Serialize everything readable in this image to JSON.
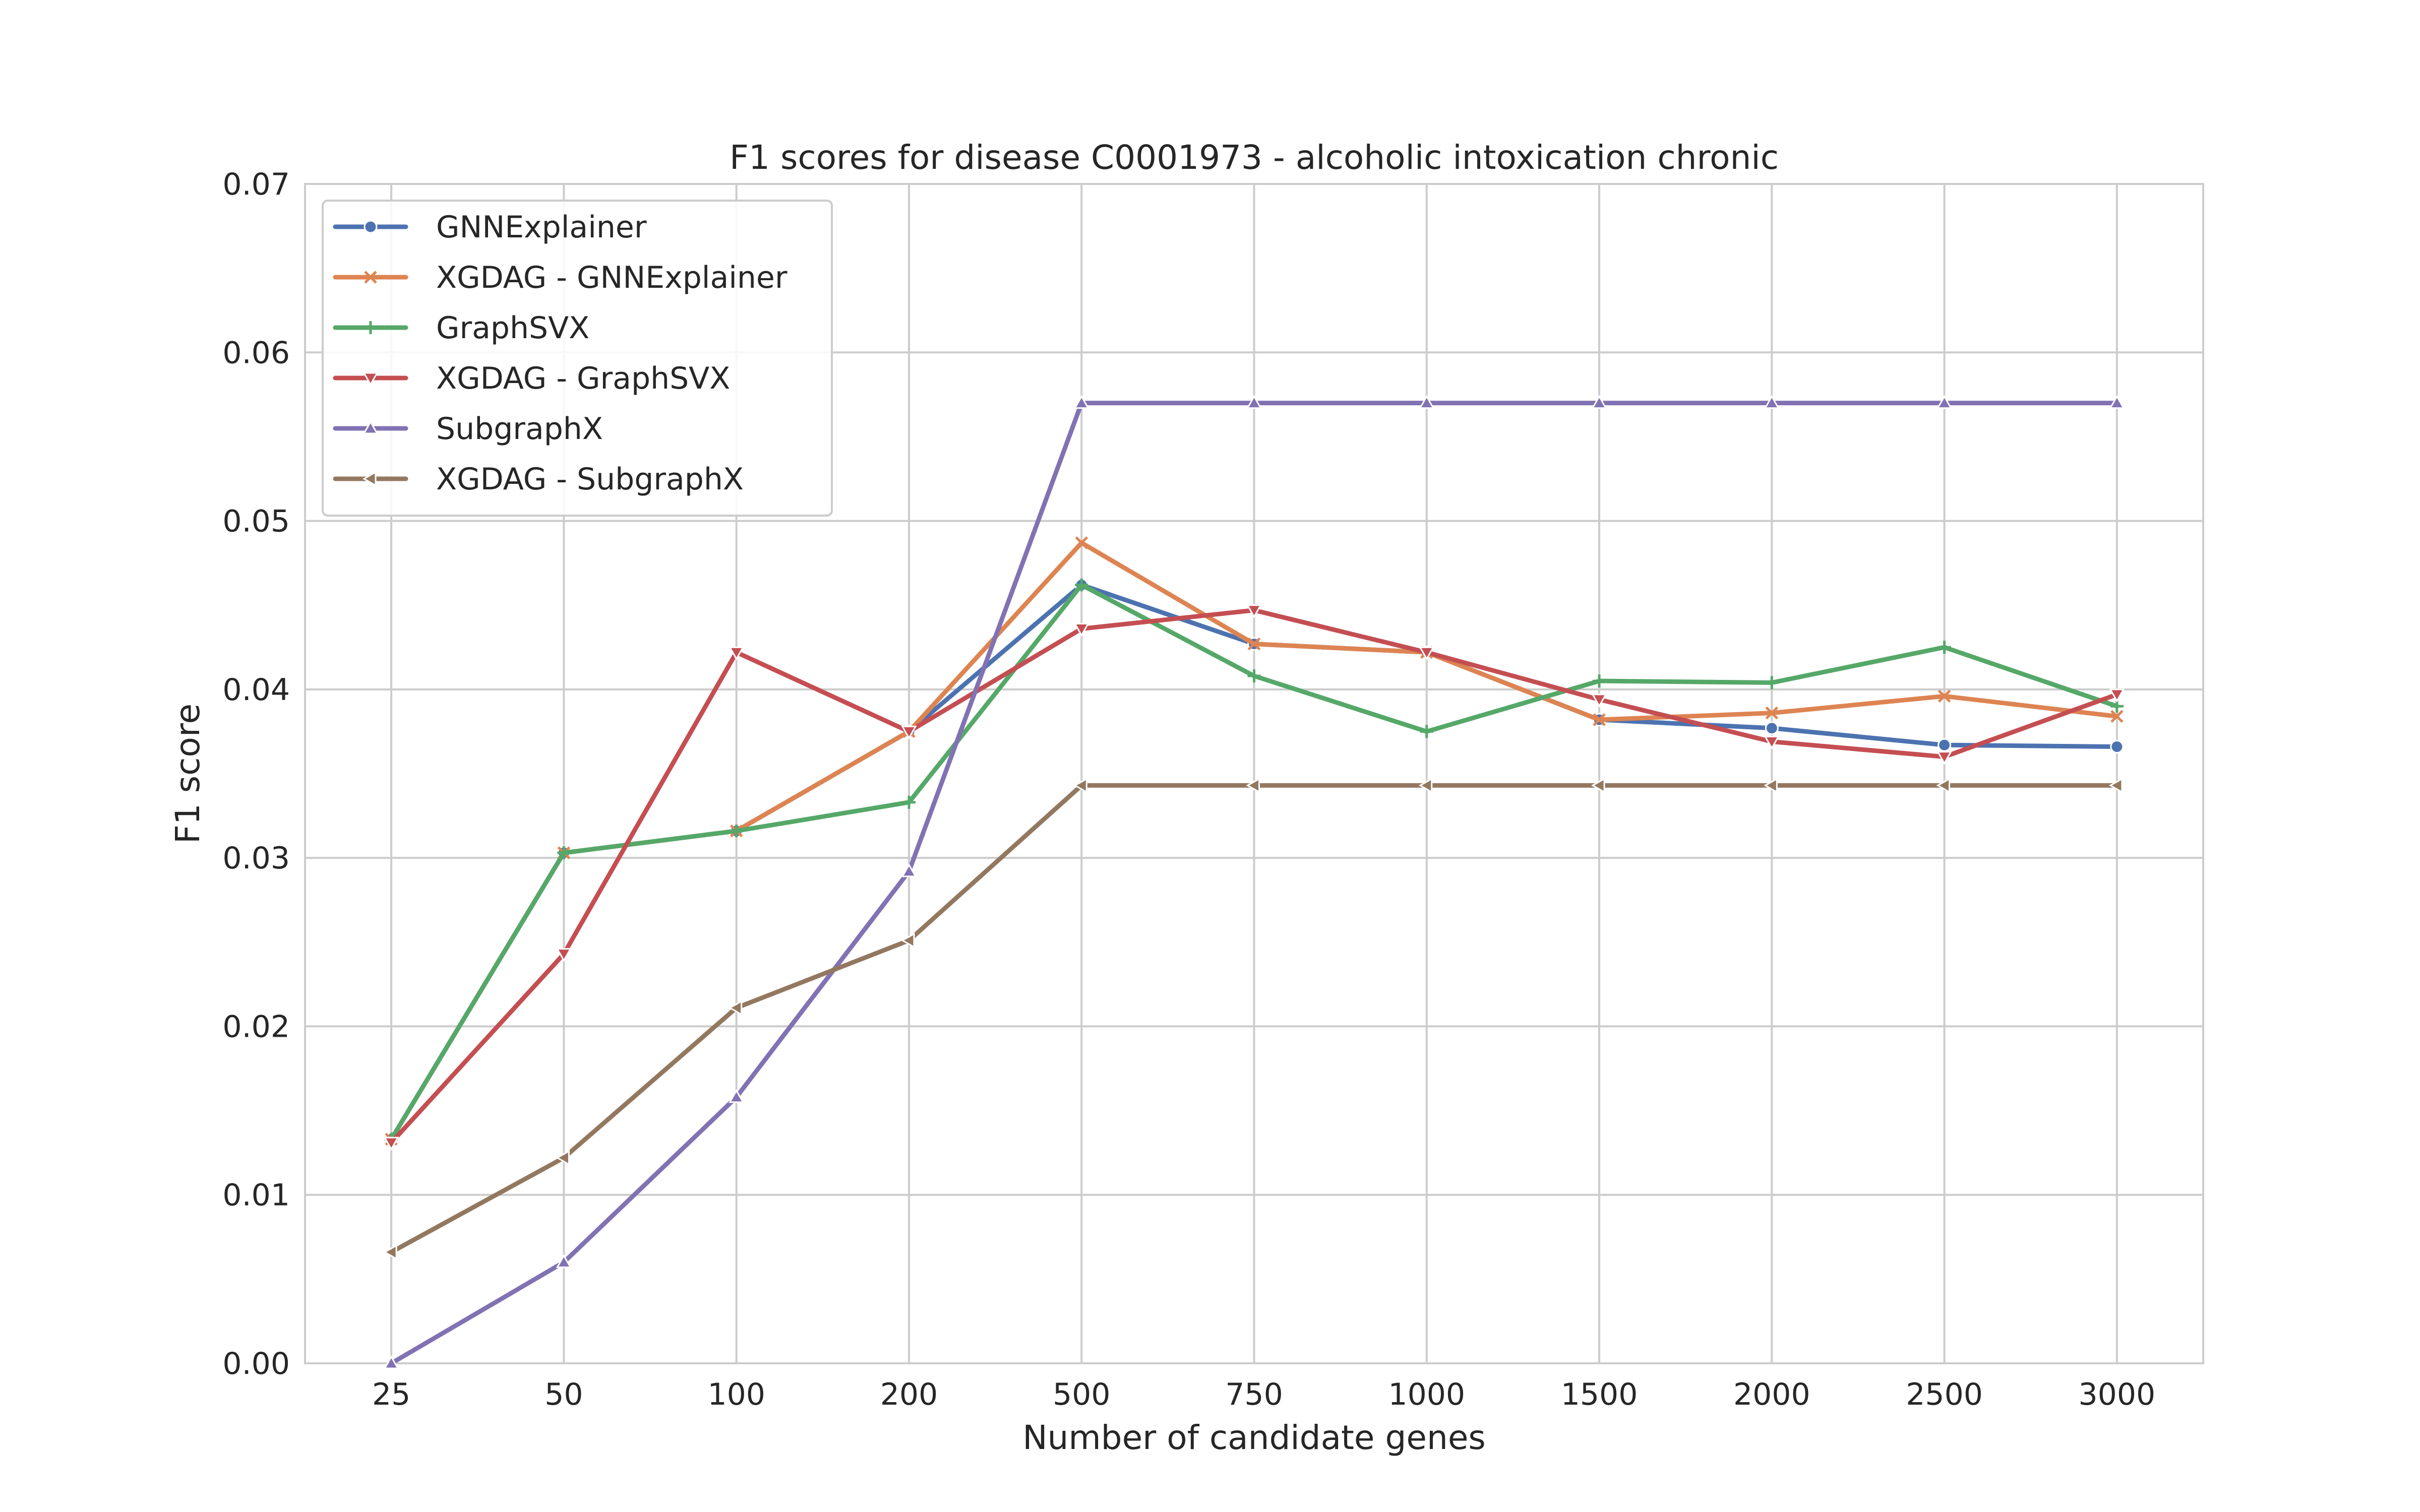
{
  "chart_data": {
    "type": "line",
    "title": "F1 scores for disease C0001973 - alcoholic intoxication chronic",
    "xlabel": "Number of candidate genes",
    "ylabel": "F1 score",
    "categories": [
      "25",
      "50",
      "100",
      "200",
      "500",
      "750",
      "1000",
      "1500",
      "2000",
      "2500",
      "3000"
    ],
    "ylim": [
      0,
      0.07
    ],
    "yticks": [
      "0.00",
      "0.01",
      "0.02",
      "0.03",
      "0.04",
      "0.05",
      "0.06",
      "0.07"
    ],
    "grid": true,
    "legend_position": "upper-left",
    "series": [
      {
        "name": "GNNExplainer",
        "color": "#4c72b0",
        "marker": "circle",
        "values": [
          0.0133,
          0.0303,
          0.0316,
          0.0375,
          0.0462,
          0.0427,
          0.0422,
          0.0382,
          0.0377,
          0.0367,
          0.0366
        ]
      },
      {
        "name": "XGDAG - GNNExplainer",
        "color": "#dd8452",
        "marker": "x",
        "values": [
          0.0133,
          0.0303,
          0.0316,
          0.0375,
          0.0487,
          0.0427,
          0.0422,
          0.0382,
          0.0386,
          0.0396,
          0.0384
        ]
      },
      {
        "name": "GraphSVX",
        "color": "#55a868",
        "marker": "plus",
        "values": [
          0.0133,
          0.0303,
          0.0316,
          0.0333,
          0.0462,
          0.0408,
          0.0375,
          0.0405,
          0.0404,
          0.0425,
          0.039
        ]
      },
      {
        "name": "XGDAG - GraphSVX",
        "color": "#c44e52",
        "marker": "triangle-down",
        "values": [
          0.0131,
          0.0243,
          0.0422,
          0.0375,
          0.0436,
          0.0447,
          0.0422,
          0.0394,
          0.0369,
          0.036,
          0.0397
        ]
      },
      {
        "name": "SubgraphX",
        "color": "#8172b3",
        "marker": "triangle-up",
        "values": [
          0.0,
          0.006,
          0.0158,
          0.0292,
          0.057,
          0.057,
          0.057,
          0.057,
          0.057,
          0.057,
          0.057
        ]
      },
      {
        "name": "XGDAG - SubgraphX",
        "color": "#937860",
        "marker": "triangle-left",
        "values": [
          0.0066,
          0.0122,
          0.0211,
          0.0251,
          0.0343,
          0.0343,
          0.0343,
          0.0343,
          0.0343,
          0.0343,
          0.0343
        ]
      }
    ]
  }
}
